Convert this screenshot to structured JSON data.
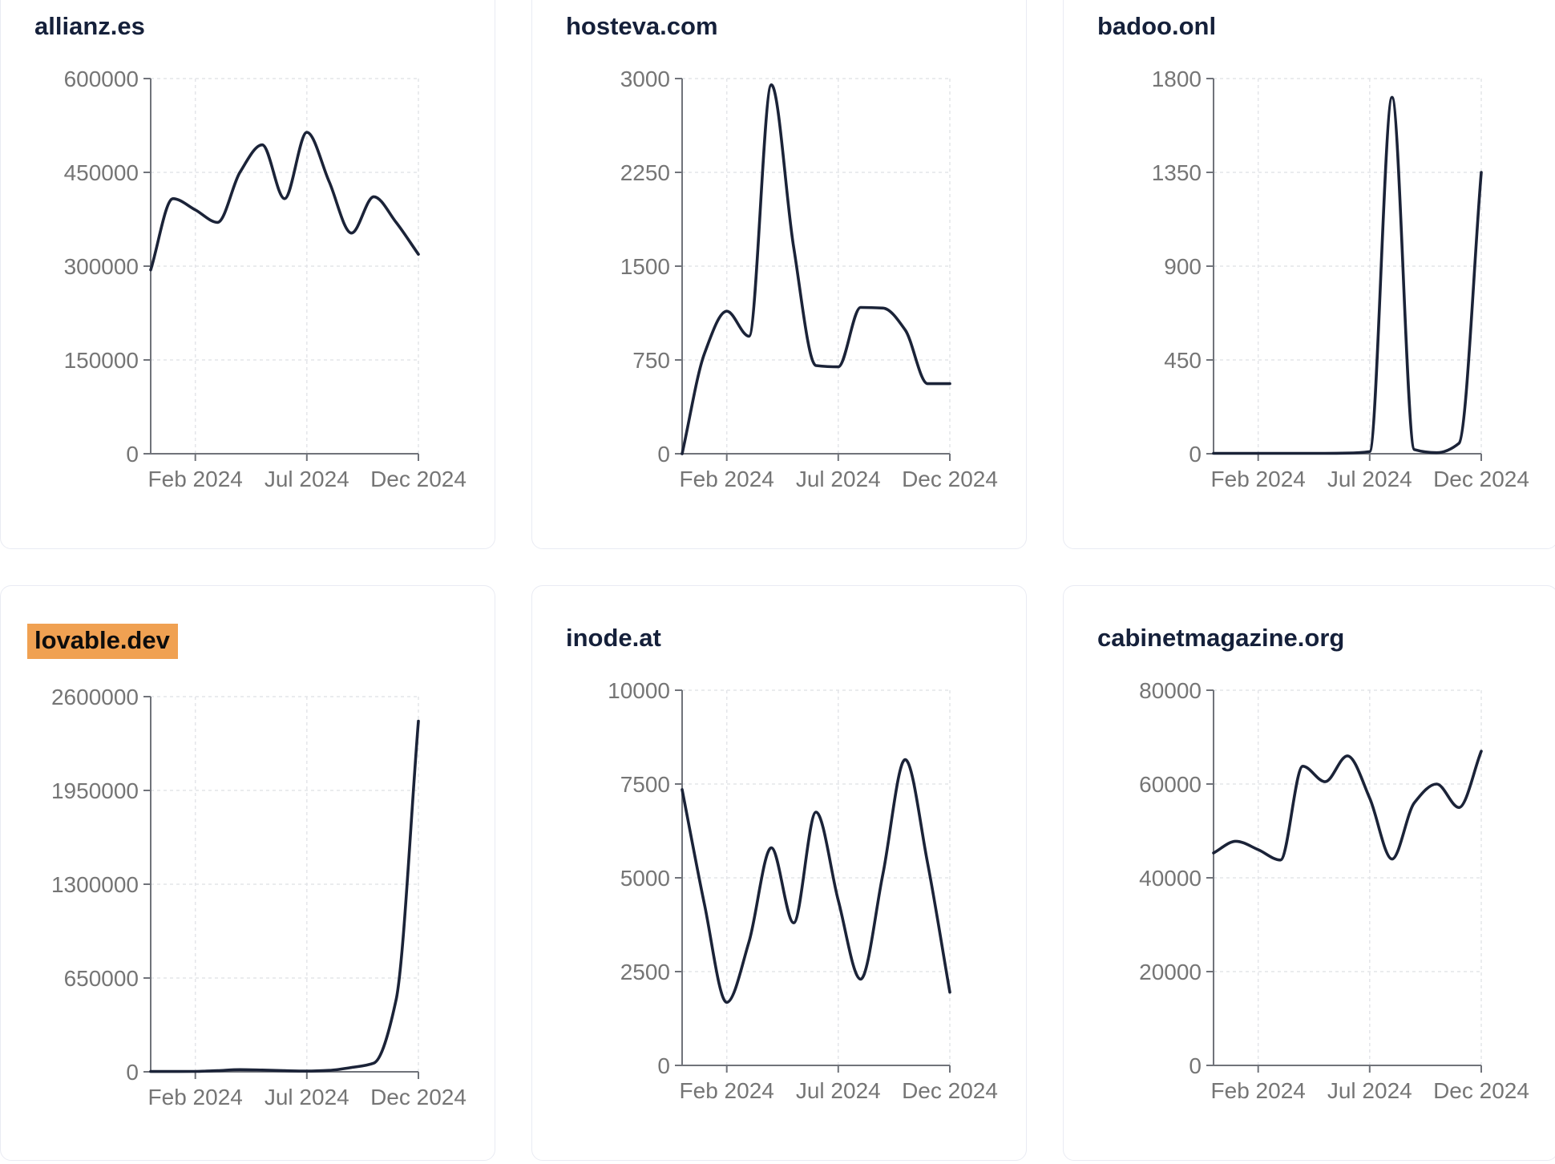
{
  "colors": {
    "line": "#1b2338",
    "title_text": "#15203a",
    "highlight_bg": "#f0a152",
    "highlight_text": "#0d0d0d",
    "axis": "#70737a",
    "tick_text": "#757575",
    "gridline": "#e4e5e9",
    "card_border": "#e9ebf3",
    "card_bg": "#ffffff",
    "page_bg": "#ffffff"
  },
  "chart_data": [
    {
      "type": "line",
      "title": "allianz.es",
      "highlighted": false,
      "x": [
        "Dec 2023",
        "Jan 2024",
        "Feb 2024",
        "Mar 2024",
        "Apr 2024",
        "May 2024",
        "Jun 2024",
        "Jul 2024",
        "Aug 2024",
        "Sep 2024",
        "Oct 2024",
        "Nov 2024",
        "Dec 2024"
      ],
      "values": [
        294000,
        408000,
        390000,
        370000,
        450000,
        494000,
        408000,
        514000,
        435000,
        353000,
        411000,
        370000,
        319000
      ],
      "ylim": [
        0,
        600000
      ],
      "y_tick_labels": [
        "600000",
        "450000",
        "300000",
        "150000",
        "0"
      ],
      "x_tick_labels": [
        "Feb 2024",
        "Jul 2024",
        "Dec 2024"
      ],
      "xlabel": "",
      "ylabel": "",
      "grid": true,
      "legend": false
    },
    {
      "type": "line",
      "title": "hosteva.com",
      "highlighted": false,
      "x": [
        "Dec 2023",
        "Jan 2024",
        "Feb 2024",
        "Mar 2024",
        "Apr 2024",
        "May 2024",
        "Jun 2024",
        "Jul 2024",
        "Aug 2024",
        "Sep 2024",
        "Oct 2024",
        "Nov 2024",
        "Dec 2024"
      ],
      "values": [
        0,
        800,
        1140,
        940,
        2950,
        1650,
        705,
        695,
        1170,
        1165,
        990,
        560,
        560
      ],
      "ylim": [
        0,
        3000
      ],
      "y_tick_labels": [
        "3000",
        "2250",
        "1500",
        "750",
        "0"
      ],
      "x_tick_labels": [
        "Feb 2024",
        "Jul 2024",
        "Dec 2024"
      ],
      "xlabel": "",
      "ylabel": "",
      "grid": true,
      "legend": false
    },
    {
      "type": "line",
      "title": "badoo.onl",
      "highlighted": false,
      "x": [
        "Dec 2023",
        "Jan 2024",
        "Feb 2024",
        "Mar 2024",
        "Apr 2024",
        "May 2024",
        "Jun 2024",
        "Jul 2024",
        "Aug 2024",
        "Sep 2024",
        "Oct 2024",
        "Nov 2024",
        "Dec 2024"
      ],
      "values": [
        2,
        2,
        2,
        2,
        2,
        2,
        3,
        10,
        1710,
        20,
        5,
        50,
        1350
      ],
      "ylim": [
        0,
        1800
      ],
      "y_tick_labels": [
        "1800",
        "1350",
        "900",
        "450",
        "0"
      ],
      "x_tick_labels": [
        "Feb 2024",
        "Jul 2024",
        "Dec 2024"
      ],
      "xlabel": "",
      "ylabel": "",
      "grid": true,
      "legend": false
    },
    {
      "type": "line",
      "title": "lovable.dev",
      "highlighted": true,
      "x": [
        "Dec 2023",
        "Jan 2024",
        "Feb 2024",
        "Mar 2024",
        "Apr 2024",
        "May 2024",
        "Jun 2024",
        "Jul 2024",
        "Aug 2024",
        "Sep 2024",
        "Oct 2024",
        "Nov 2024",
        "Dec 2024"
      ],
      "values": [
        2000,
        2000,
        3000,
        8000,
        15000,
        12000,
        8000,
        5000,
        10000,
        30000,
        60000,
        500000,
        2430000
      ],
      "ylim": [
        0,
        2600000
      ],
      "y_tick_labels": [
        "2600000",
        "1950000",
        "1300000",
        "650000",
        "0"
      ],
      "x_tick_labels": [
        "Feb 2024",
        "Jul 2024",
        "Dec 2024"
      ],
      "xlabel": "",
      "ylabel": "",
      "grid": true,
      "legend": false
    },
    {
      "type": "line",
      "title": "inode.at",
      "highlighted": false,
      "x": [
        "Dec 2023",
        "Jan 2024",
        "Feb 2024",
        "Mar 2024",
        "Apr 2024",
        "May 2024",
        "Jun 2024",
        "Jul 2024",
        "Aug 2024",
        "Sep 2024",
        "Oct 2024",
        "Nov 2024",
        "Dec 2024"
      ],
      "values": [
        7350,
        4300,
        1680,
        3300,
        5800,
        3800,
        6750,
        4400,
        2300,
        5100,
        8150,
        5400,
        1950
      ],
      "ylim": [
        0,
        10000
      ],
      "y_tick_labels": [
        "10000",
        "7500",
        "5000",
        "2500",
        "0"
      ],
      "x_tick_labels": [
        "Feb 2024",
        "Jul 2024",
        "Dec 2024"
      ],
      "xlabel": "",
      "ylabel": "",
      "grid": true,
      "legend": false
    },
    {
      "type": "line",
      "title": "cabinetmagazine.org",
      "highlighted": false,
      "x": [
        "Dec 2023",
        "Jan 2024",
        "Feb 2024",
        "Mar 2024",
        "Apr 2024",
        "May 2024",
        "Jun 2024",
        "Jul 2024",
        "Aug 2024",
        "Sep 2024",
        "Oct 2024",
        "Nov 2024",
        "Dec 2024"
      ],
      "values": [
        45300,
        47800,
        46000,
        43800,
        63800,
        60500,
        66000,
        57000,
        44000,
        56000,
        60000,
        55000,
        67000
      ],
      "ylim": [
        0,
        80000
      ],
      "y_tick_labels": [
        "80000",
        "60000",
        "40000",
        "20000",
        "0"
      ],
      "x_tick_labels": [
        "Feb 2024",
        "Jul 2024",
        "Dec 2024"
      ],
      "xlabel": "",
      "ylabel": "",
      "grid": true,
      "legend": false
    }
  ]
}
